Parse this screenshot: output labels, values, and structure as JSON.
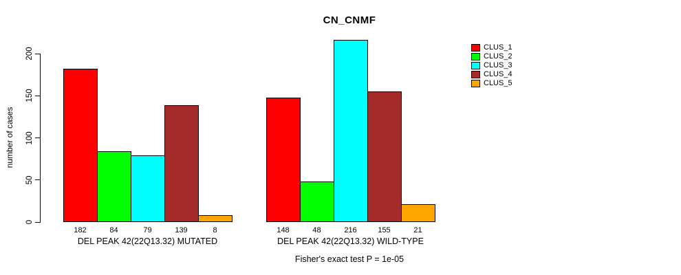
{
  "title": "CN_CNMF",
  "ylabel": "number of cases",
  "footer": "Fisher's exact test P = 1e-05",
  "legend": [
    {
      "label": "CLUS_1",
      "color": "#FF0000"
    },
    {
      "label": "CLUS_2",
      "color": "#00FF00"
    },
    {
      "label": "CLUS_3",
      "color": "#00FFFF"
    },
    {
      "label": "CLUS_4",
      "color": "#A52A2A"
    },
    {
      "label": "CLUS_5",
      "color": "#FFA500"
    }
  ],
  "chart_data": {
    "type": "bar",
    "title": "CN_CNMF",
    "xlabel": "",
    "ylabel": "number of cases",
    "categories": [
      "DEL PEAK 42(22Q13.32) MUTATED",
      "DEL PEAK 42(22Q13.32) WILD-TYPE"
    ],
    "series": [
      {
        "name": "CLUS_1",
        "color": "#FF0000",
        "values": [
          182,
          148
        ]
      },
      {
        "name": "CLUS_2",
        "color": "#00FF00",
        "values": [
          84,
          48
        ]
      },
      {
        "name": "CLUS_3",
        "color": "#00FFFF",
        "values": [
          79,
          216
        ]
      },
      {
        "name": "CLUS_4",
        "color": "#A52A2A",
        "values": [
          139,
          155
        ]
      },
      {
        "name": "CLUS_5",
        "color": "#FFA500",
        "values": [
          8,
          21
        ]
      }
    ],
    "bar_value_labels": [
      [
        182,
        84,
        79,
        139,
        8
      ],
      [
        148,
        48,
        216,
        155,
        21
      ]
    ],
    "yticks": [
      0,
      50,
      100,
      150,
      200
    ],
    "ylim": [
      0,
      216
    ],
    "grid": false,
    "legend_position": "right",
    "annotation": "Fisher's exact test P = 1e-05"
  }
}
